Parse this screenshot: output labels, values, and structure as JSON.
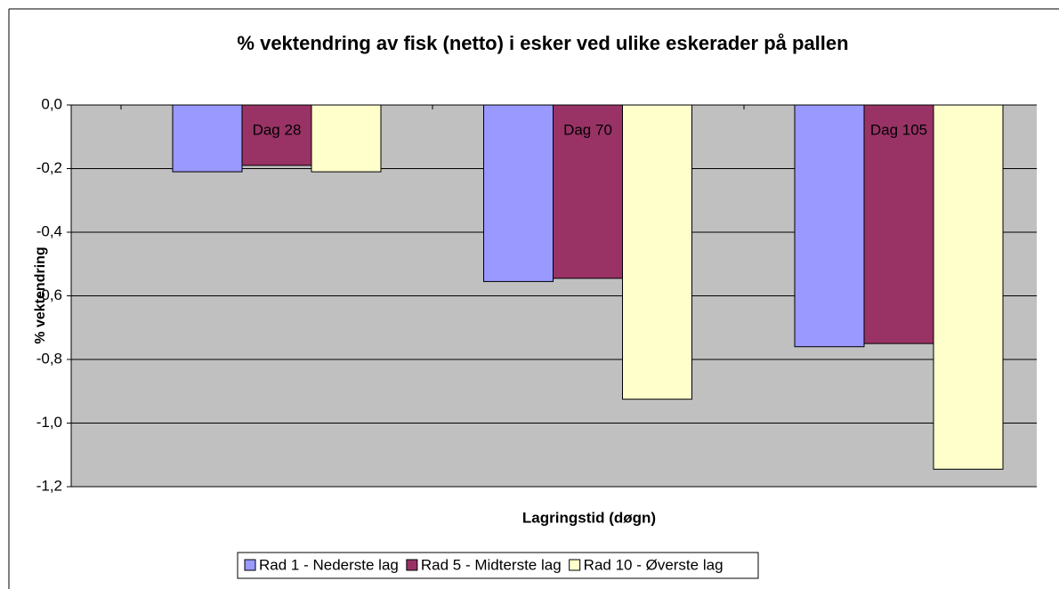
{
  "chart_data": {
    "type": "bar",
    "title": "% vektendring av fisk (netto) i esker ved ulike eskerader på pallen",
    "x_label": "Lagringstid (døgn)",
    "y_label": "% vektendring",
    "categories": [
      "Dag 28",
      "Dag 70",
      "Dag 105"
    ],
    "series": [
      {
        "name": "Rad 1 - Nederste lag",
        "color": "#9999ff",
        "values": [
          -0.21,
          -0.555,
          -0.76
        ]
      },
      {
        "name": "Rad 5 - Midterste lag",
        "color": "#993366",
        "values": [
          -0.19,
          -0.545,
          -0.75
        ]
      },
      {
        "name": "Rad 10 - Øverste lag",
        "color": "#ffffcc",
        "values": [
          -0.21,
          -0.925,
          -1.145
        ]
      }
    ],
    "ylim": [
      -1.2,
      0
    ],
    "yticks": [
      {
        "value": 0,
        "label": "0,0"
      },
      {
        "value": -0.2,
        "label": "-0,2"
      },
      {
        "value": -0.4,
        "label": "-0,4"
      },
      {
        "value": -0.6,
        "label": "-0,6"
      },
      {
        "value": -0.8,
        "label": "-0,8"
      },
      {
        "value": -1.0,
        "label": "-1,0"
      },
      {
        "value": -1.2,
        "label": "-1,2"
      }
    ],
    "grid": true,
    "legend": "bottom"
  }
}
